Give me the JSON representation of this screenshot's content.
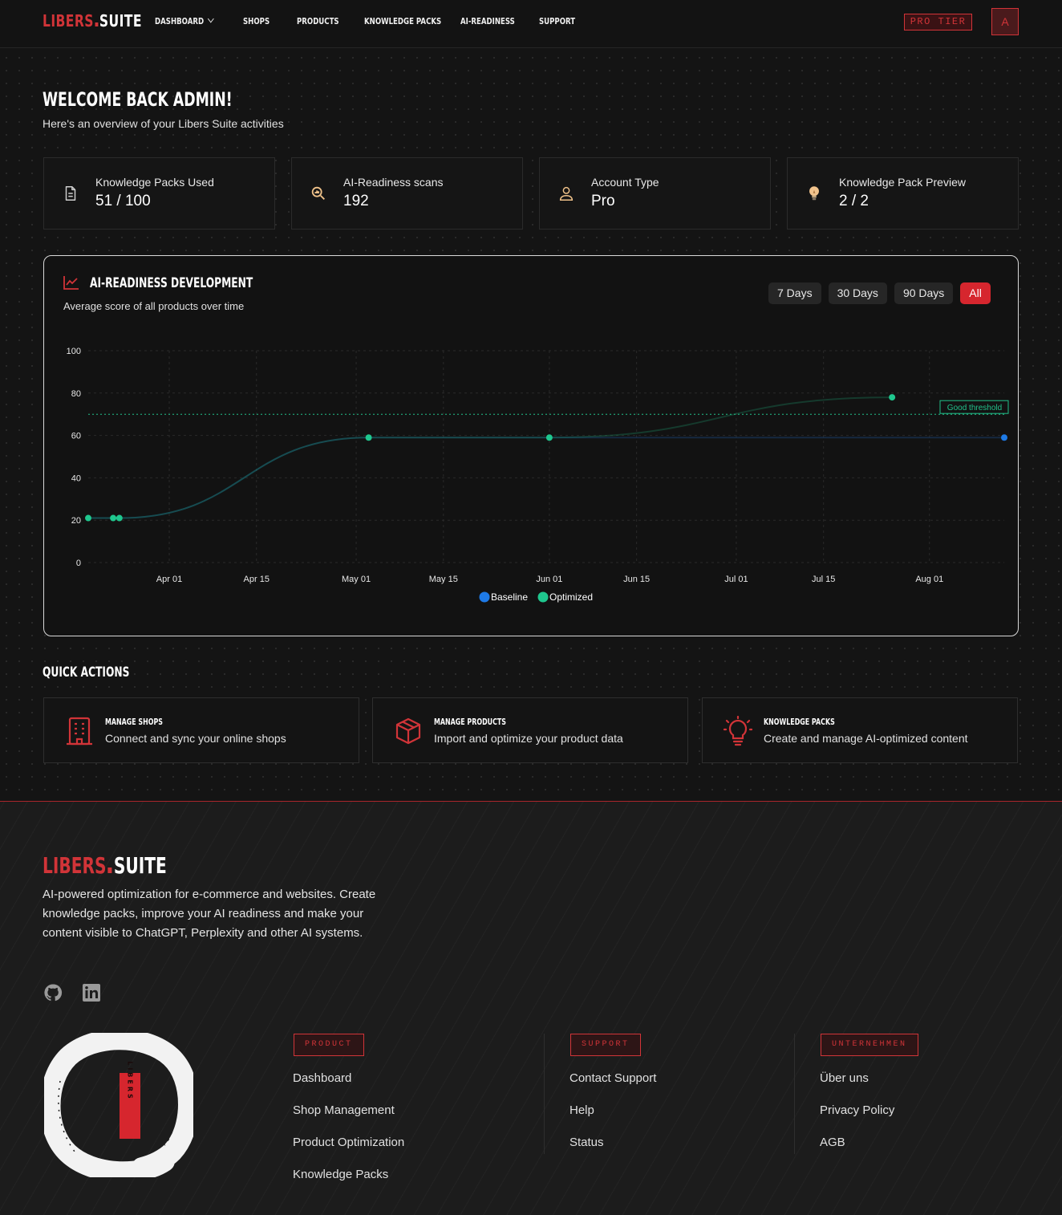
{
  "nav": {
    "logo_red": "LIBERS",
    "logo_white": "SUITE",
    "links": [
      "DASHBOARD",
      "SHOPS",
      "PRODUCTS",
      "KNOWLEDGE PACKS",
      "AI-READINESS",
      "SUPPORT"
    ],
    "tier_badge": "PRO TIER",
    "avatar_initial": "A"
  },
  "header": {
    "title": "WELCOME BACK ADMIN!",
    "subtitle": "Here's an overview of your Libers Suite activities"
  },
  "stats": [
    {
      "label": "Knowledge Packs Used",
      "value": "51 / 100",
      "icon": "document-icon"
    },
    {
      "label": "AI-Readiness scans",
      "value": "192",
      "icon": "scan-search-icon"
    },
    {
      "label": "Account Type",
      "value": "Pro",
      "icon": "user-icon"
    },
    {
      "label": "Knowledge Pack Preview",
      "value": "2 / 2",
      "icon": "lightbulb-icon"
    }
  ],
  "chart_card": {
    "title": "AI-READINESS DEVELOPMENT",
    "subtitle": "Average score of all products over time",
    "ranges": [
      "7 Days",
      "30 Days",
      "90 Days",
      "All"
    ],
    "active_range": "All"
  },
  "chart_data": {
    "type": "line",
    "ylim": [
      0,
      100
    ],
    "yticks": [
      0,
      20,
      40,
      60,
      80,
      100
    ],
    "xticks": [
      "Apr 01",
      "Apr 15",
      "May 01",
      "May 15",
      "Jun 01",
      "Jun 15",
      "Jul 01",
      "Jul 15",
      "Aug 01"
    ],
    "x_start": "2025-03-19",
    "x_end": "2025-08-13",
    "threshold": {
      "value": 70,
      "label": "Good threshold",
      "color": "#22c08a"
    },
    "series": [
      {
        "name": "Baseline",
        "color": "#1e7ae6",
        "points": [
          [
            "2025-03-19",
            21
          ],
          [
            "2025-03-23",
            21
          ],
          [
            "2025-03-24",
            21
          ],
          [
            "2025-05-03",
            59
          ],
          [
            "2025-06-01",
            59
          ],
          [
            "2025-08-13",
            59
          ]
        ]
      },
      {
        "name": "Optimized",
        "color": "#1fc78e",
        "points": [
          [
            "2025-03-19",
            21
          ],
          [
            "2025-03-23",
            21
          ],
          [
            "2025-03-24",
            21
          ],
          [
            "2025-05-03",
            59
          ],
          [
            "2025-06-01",
            59
          ],
          [
            "2025-07-26",
            78
          ]
        ]
      }
    ]
  },
  "quick_actions": {
    "title": "QUICK ACTIONS",
    "items": [
      {
        "title": "MANAGE SHOPS",
        "desc": "Connect and sync your online shops",
        "icon": "building-icon"
      },
      {
        "title": "MANAGE PRODUCTS",
        "desc": "Import and optimize your product data",
        "icon": "box-icon"
      },
      {
        "title": "KNOWLEDGE PACKS",
        "desc": "Create and manage AI-optimized content",
        "icon": "lightbulb-icon"
      }
    ]
  },
  "footer": {
    "logo_red": "LIBERS",
    "logo_white": "SUITE",
    "description": "AI-powered optimization for e-commerce and websites. Create knowledge packs, improve your AI readiness and make your content visible to ChatGPT, Perplexity and other AI systems.",
    "seal_text": "LIBERS",
    "columns": [
      {
        "badge": "PRODUCT",
        "links": [
          "Dashboard",
          "Shop Management",
          "Product Optimization",
          "Knowledge Packs"
        ]
      },
      {
        "badge": "SUPPORT",
        "links": [
          "Contact Support",
          "Help",
          "Status"
        ]
      },
      {
        "badge": "UNTERNEHMEN",
        "links": [
          "Über uns",
          "Privacy Policy",
          "AGB"
        ]
      }
    ]
  },
  "colors": {
    "accent": "#d13438",
    "baseline": "#1e7ae6",
    "optimized": "#1fc78e"
  }
}
